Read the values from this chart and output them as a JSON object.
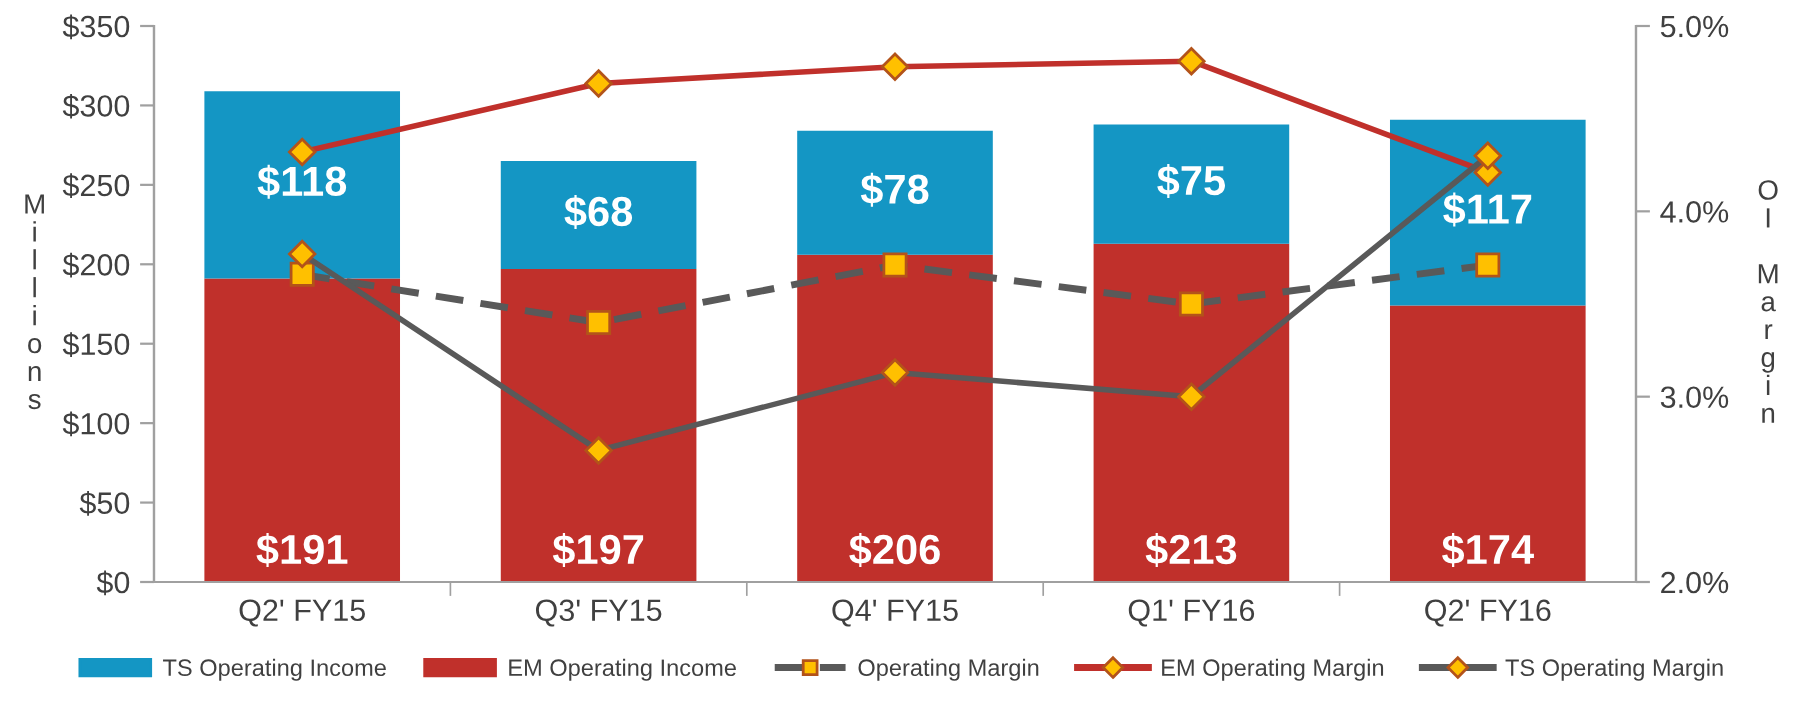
{
  "chart_data": {
    "type": "bar",
    "stacked": true,
    "ylabel": "Millions",
    "y2label": "OI Margin",
    "categories": [
      "Q2' FY15",
      "Q3' FY15",
      "Q4' FY15",
      "Q1' FY16",
      "Q2' FY16"
    ],
    "series": [
      {
        "name": "EM Operating Income",
        "color": "#c0302b",
        "values": [
          191,
          197,
          206,
          213,
          174
        ],
        "value_labels": [
          "$191",
          "$197",
          "$206",
          "$213",
          "$174"
        ]
      },
      {
        "name": "TS Operating Income",
        "color": "#1496c4",
        "values": [
          118,
          68,
          78,
          75,
          117
        ],
        "value_labels": [
          "$118",
          "$68",
          "$78",
          "$75",
          "$117"
        ]
      },
      {
        "name": "Operating Margin",
        "type": "line",
        "axis": "y2",
        "color": "#595959",
        "marker": "square",
        "line_style": "dashed",
        "values": [
          3.66,
          3.4,
          3.71,
          3.5,
          3.71
        ]
      },
      {
        "name": "EM Operating Margin",
        "type": "line",
        "axis": "y2",
        "color": "#c0302b",
        "marker": "diamond",
        "line_style": "solid",
        "values": [
          4.32,
          4.69,
          4.78,
          4.81,
          4.21
        ]
      },
      {
        "name": "TS Operating Margin",
        "type": "line",
        "axis": "y2",
        "color": "#595959",
        "marker": "diamond",
        "line_style": "solid",
        "values": [
          3.77,
          2.71,
          3.13,
          3.0,
          4.3
        ]
      }
    ],
    "ylim": [
      0,
      350
    ],
    "yticks": [
      {
        "value": 0,
        "label": "$0"
      },
      {
        "value": 50,
        "label": "$50"
      },
      {
        "value": 100,
        "label": "$100"
      },
      {
        "value": 150,
        "label": "$150"
      },
      {
        "value": 200,
        "label": "$200"
      },
      {
        "value": 250,
        "label": "$250"
      },
      {
        "value": 300,
        "label": "$300"
      },
      {
        "value": 350,
        "label": "$350"
      }
    ],
    "y2lim": [
      2.0,
      5.0
    ],
    "y2ticks": [
      {
        "value": 2.0,
        "label": "2.0%"
      },
      {
        "value": 3.0,
        "label": "3.0%"
      },
      {
        "value": 4.0,
        "label": "4.0%"
      },
      {
        "value": 5.0,
        "label": "5.0%"
      }
    ],
    "legend": "bottom",
    "grid": false
  }
}
